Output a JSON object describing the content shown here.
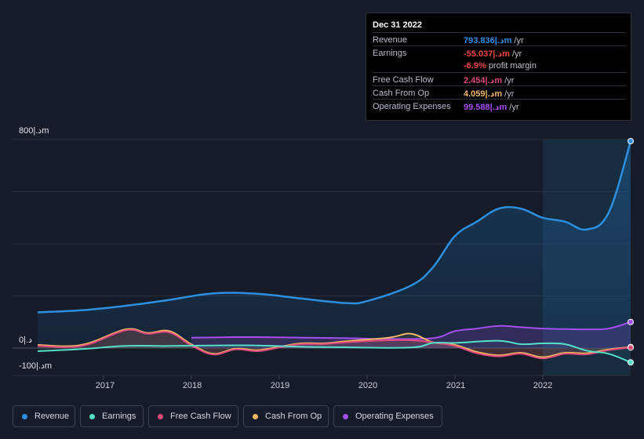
{
  "tooltip": {
    "date": "Dec 31 2022",
    "rows": [
      {
        "label": "Revenue",
        "value": "793.836|.دm",
        "suffix": "/yr",
        "color": "#2d8fe0"
      },
      {
        "label": "Earnings",
        "value": "-55.037|.دm",
        "suffix": "/yr",
        "color": "#ef4444"
      },
      {
        "label": "",
        "value": "-6.9%",
        "suffix": "profit margin",
        "color": "#ef4444"
      },
      {
        "label": "Free Cash Flow",
        "value": "2.454|.دm",
        "suffix": "/yr",
        "color": "#e0497e"
      },
      {
        "label": "Cash From Op",
        "value": "4.059|.دm",
        "suffix": "/yr",
        "color": "#f0b664"
      },
      {
        "label": "Operating Expenses",
        "value": "99.588|.دm",
        "suffix": "/yr",
        "color": "#a64ef0"
      }
    ]
  },
  "legend": [
    {
      "label": "Revenue",
      "color": "#2d8fe0"
    },
    {
      "label": "Earnings",
      "color": "#55dfc8"
    },
    {
      "label": "Free Cash Flow",
      "color": "#e0497e"
    },
    {
      "label": "Cash From Op",
      "color": "#f0b664"
    },
    {
      "label": "Operating Expenses",
      "color": "#a64ef0"
    }
  ],
  "chart_data": {
    "type": "line",
    "y_tick_labels": [
      "800|.دm",
      "0|.د",
      "-100|.دm"
    ],
    "ylim": [
      -100,
      800
    ],
    "x_ticks": [
      {
        "label": "2017",
        "x": 2017.0
      },
      {
        "label": "2018",
        "x": 2018.0
      },
      {
        "label": "2019",
        "x": 2019.0
      },
      {
        "label": "2020",
        "x": 2020.0
      },
      {
        "label": "2021",
        "x": 2021.0
      },
      {
        "label": "2022",
        "x": 2022.0
      }
    ],
    "xlim": [
      2016.25,
      2023.0
    ],
    "highlight_from": 2022.0,
    "grid": true,
    "series": [
      {
        "name": "Revenue",
        "color": "#2d8fe0",
        "points": [
          [
            2016.25,
            137
          ],
          [
            2016.75,
            145
          ],
          [
            2017.25,
            162
          ],
          [
            2017.75,
            185
          ],
          [
            2018.25,
            210
          ],
          [
            2018.75,
            208
          ],
          [
            2019.25,
            190
          ],
          [
            2019.75,
            173
          ],
          [
            2020.0,
            180
          ],
          [
            2020.5,
            240
          ],
          [
            2020.75,
            310
          ],
          [
            2021.0,
            430
          ],
          [
            2021.25,
            485
          ],
          [
            2021.5,
            535
          ],
          [
            2021.75,
            535
          ],
          [
            2022.0,
            500
          ],
          [
            2022.25,
            485
          ],
          [
            2022.5,
            455
          ],
          [
            2022.75,
            520
          ],
          [
            2023.0,
            794
          ]
        ]
      },
      {
        "name": "Earnings",
        "color": "#55dfc8",
        "points": [
          [
            2016.25,
            -12
          ],
          [
            2016.75,
            -4
          ],
          [
            2017.25,
            8
          ],
          [
            2017.75,
            8
          ],
          [
            2018.25,
            10
          ],
          [
            2018.75,
            10
          ],
          [
            2019.25,
            5
          ],
          [
            2019.75,
            3
          ],
          [
            2020.5,
            2
          ],
          [
            2020.75,
            20
          ],
          [
            2021.0,
            20
          ],
          [
            2021.5,
            28
          ],
          [
            2021.75,
            15
          ],
          [
            2022.0,
            18
          ],
          [
            2022.25,
            15
          ],
          [
            2022.5,
            -10
          ],
          [
            2022.75,
            -22
          ],
          [
            2023.0,
            -55
          ]
        ]
      },
      {
        "name": "Free Cash Flow",
        "color": "#e0497e",
        "points": [
          [
            2016.25,
            8
          ],
          [
            2016.75,
            8
          ],
          [
            2017.25,
            68
          ],
          [
            2017.5,
            55
          ],
          [
            2017.75,
            60
          ],
          [
            2018.0,
            10
          ],
          [
            2018.25,
            -25
          ],
          [
            2018.5,
            -5
          ],
          [
            2018.75,
            -12
          ],
          [
            2019.0,
            2
          ],
          [
            2019.25,
            15
          ],
          [
            2019.5,
            15
          ],
          [
            2019.75,
            22
          ],
          [
            2020.25,
            30
          ],
          [
            2020.5,
            30
          ],
          [
            2020.75,
            22
          ],
          [
            2021.0,
            8
          ],
          [
            2021.25,
            -20
          ],
          [
            2021.5,
            -32
          ],
          [
            2021.75,
            -22
          ],
          [
            2022.0,
            -40
          ],
          [
            2022.25,
            -22
          ],
          [
            2022.5,
            -24
          ],
          [
            2022.75,
            -8
          ],
          [
            2023.0,
            2
          ]
        ]
      },
      {
        "name": "Cash From Op",
        "color": "#f0b664",
        "points": [
          [
            2016.25,
            12
          ],
          [
            2016.75,
            12
          ],
          [
            2017.25,
            72
          ],
          [
            2017.5,
            58
          ],
          [
            2017.75,
            65
          ],
          [
            2018.0,
            14
          ],
          [
            2018.25,
            -22
          ],
          [
            2018.5,
            -2
          ],
          [
            2018.75,
            -8
          ],
          [
            2019.0,
            5
          ],
          [
            2019.25,
            18
          ],
          [
            2019.5,
            18
          ],
          [
            2019.75,
            26
          ],
          [
            2020.25,
            40
          ],
          [
            2020.5,
            55
          ],
          [
            2020.75,
            22
          ],
          [
            2021.0,
            12
          ],
          [
            2021.25,
            -15
          ],
          [
            2021.5,
            -28
          ],
          [
            2021.75,
            -18
          ],
          [
            2022.0,
            -35
          ],
          [
            2022.25,
            -18
          ],
          [
            2022.5,
            -20
          ],
          [
            2022.75,
            -5
          ],
          [
            2023.0,
            4
          ]
        ]
      },
      {
        "name": "Operating Expenses",
        "color": "#a64ef0",
        "points": [
          [
            2018.0,
            40
          ],
          [
            2018.5,
            42
          ],
          [
            2018.75,
            42
          ],
          [
            2019.25,
            40
          ],
          [
            2019.75,
            38
          ],
          [
            2020.25,
            35
          ],
          [
            2020.75,
            38
          ],
          [
            2021.0,
            65
          ],
          [
            2021.25,
            75
          ],
          [
            2021.5,
            85
          ],
          [
            2021.75,
            80
          ],
          [
            2022.0,
            75
          ],
          [
            2022.5,
            72
          ],
          [
            2022.75,
            75
          ],
          [
            2023.0,
            100
          ]
        ]
      }
    ]
  }
}
